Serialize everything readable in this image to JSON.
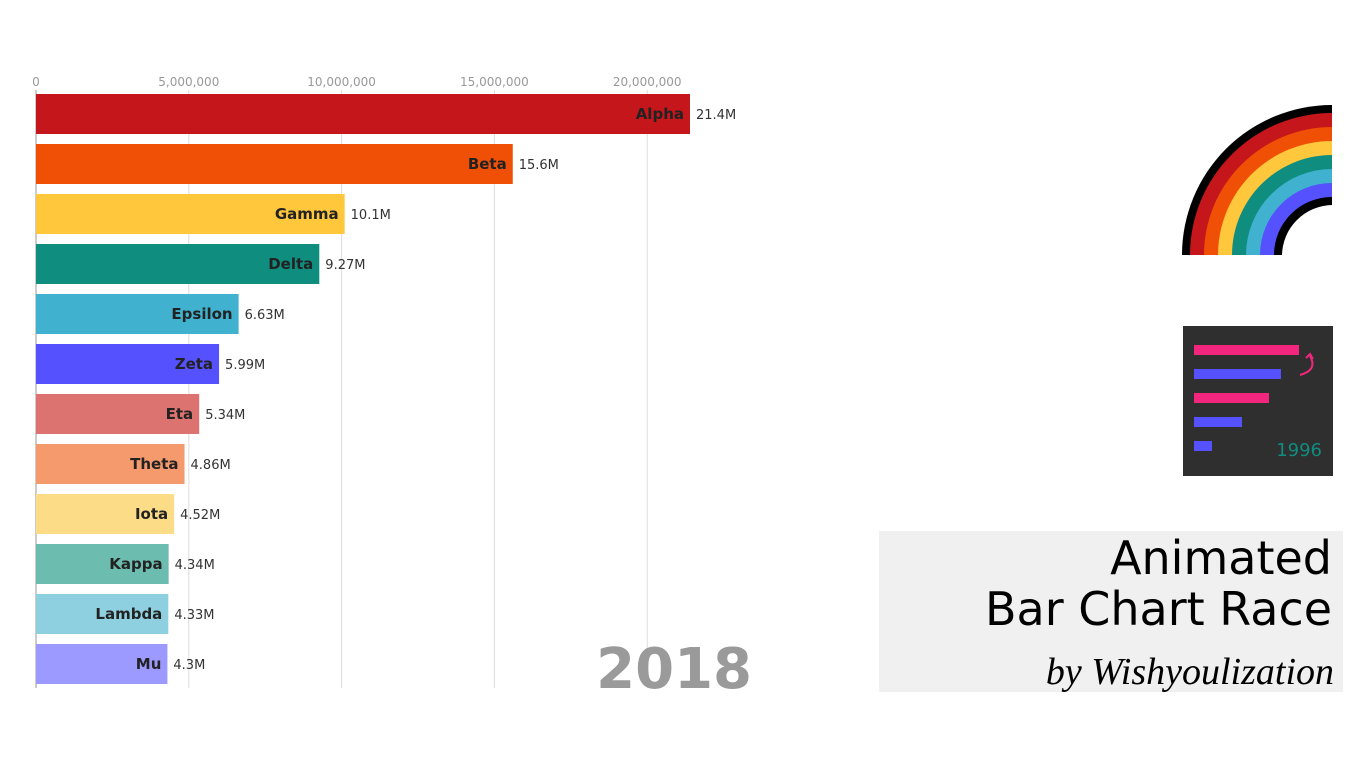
{
  "chart_data": {
    "type": "hbar",
    "categories": [
      "Alpha",
      "Beta",
      "Gamma",
      "Delta",
      "Epsilon",
      "Zeta",
      "Eta",
      "Theta",
      "Iota",
      "Kappa",
      "Lambda",
      "Mu"
    ],
    "values": [
      21400000,
      15600000,
      10100000,
      9270000,
      6630000,
      5990000,
      5340000,
      4860000,
      4520000,
      4340000,
      4330000,
      4300000
    ],
    "value_labels": [
      "21.4M",
      "15.6M",
      "10.1M",
      "9.27M",
      "6.63M",
      "5.99M",
      "5.34M",
      "4.86M",
      "4.52M",
      "4.34M",
      "4.33M",
      "4.3M"
    ],
    "colors": [
      "#c4161b",
      "#f05006",
      "#ffc73c",
      "#0f8d7e",
      "#40b1cf",
      "#5551fe",
      "#dd7370",
      "#f59a6c",
      "#fddc87",
      "#6dbcb0",
      "#8ecfe0",
      "#9c9afe"
    ],
    "xlim": [
      0,
      21400000
    ],
    "xticks": [
      0,
      {
        "value": 5000000,
        "label": "5,000,000"
      },
      {
        "value": 10000000,
        "label": "10,000,000"
      },
      {
        "value": 15000000,
        "label": "15,000,000"
      },
      {
        "value": 20000000,
        "label": "20,000,000"
      }
    ],
    "grid": true,
    "annotation": "2018"
  },
  "branding": {
    "title_lines": [
      "Animated",
      "Bar Chart Race"
    ],
    "byline": "by Wishyoulization",
    "logo_year": "1996"
  }
}
